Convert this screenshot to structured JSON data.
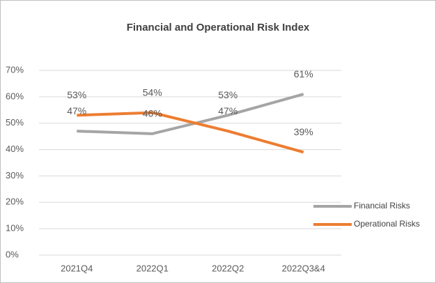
{
  "chart_data": {
    "type": "line",
    "title": "Financial and Operational Risk Index",
    "categories": [
      "2021Q4",
      "2022Q1",
      "2022Q2",
      "2022Q3&4"
    ],
    "series": [
      {
        "name": "Financial Risks",
        "color": "#a5a5a5",
        "values": [
          47,
          46,
          53,
          61
        ],
        "value_labels": [
          "47%",
          "46%",
          "53%",
          "61%"
        ]
      },
      {
        "name": "Operational Risks",
        "color": "#ed7d31",
        "values": [
          53,
          54,
          47,
          39
        ],
        "value_labels": [
          "53%",
          "54%",
          "47%",
          "39%"
        ]
      }
    ],
    "ylim": [
      0,
      70
    ],
    "yticks": [
      {
        "value": 0,
        "label": "0%"
      },
      {
        "value": 10,
        "label": "10%"
      },
      {
        "value": 20,
        "label": "20%"
      },
      {
        "value": 30,
        "label": "30%"
      },
      {
        "value": 40,
        "label": "40%"
      },
      {
        "value": 50,
        "label": "50%"
      },
      {
        "value": 60,
        "label": "60%"
      },
      {
        "value": 70,
        "label": "70%"
      }
    ],
    "grid": true,
    "legend": "right"
  }
}
